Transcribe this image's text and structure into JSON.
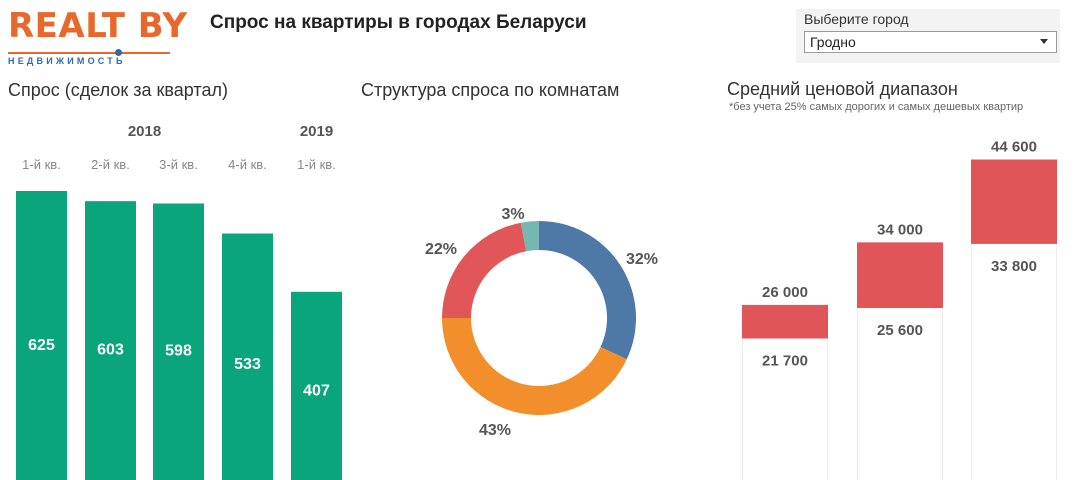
{
  "logo": {
    "text": "REALT BY",
    "subtitle": "НЕДВИЖИМОСТЬ"
  },
  "header": {
    "title": "Спрос на квартиры в городах Беларуси"
  },
  "city_selector": {
    "label": "Выберите город",
    "value": "Гродно"
  },
  "sections": {
    "demand_title": "Спрос (сделок за квартал)",
    "structure_title": "Структура спроса по комнатам",
    "price_title": "Средний ценовой диапазон",
    "price_note": "*без учета 25% самых дорогих и самых дешевых квартир"
  },
  "colors": {
    "bar": "#0aa57a",
    "range": "#e05558",
    "blue": "#4e79a7",
    "orange": "#f28e2b",
    "red": "#e15759",
    "teal": "#76b7b2"
  },
  "chart_data": [
    {
      "type": "bar",
      "title": "Спрос (сделок за квартал)",
      "groups": [
        {
          "label": "2018",
          "span": 4
        },
        {
          "label": "2019",
          "span": 1
        }
      ],
      "categories": [
        "1-й кв.",
        "2-й кв.",
        "3-й кв.",
        "4-й кв.",
        "1-й кв."
      ],
      "values": [
        625,
        603,
        598,
        533,
        407
      ],
      "value_labels": [
        "625",
        "603",
        "598",
        "533",
        "407"
      ],
      "ylim": [
        0,
        625
      ],
      "grid": false
    },
    {
      "type": "pie",
      "title": "Структура спроса по комнатам",
      "slices": [
        {
          "value": 32,
          "label": "32%",
          "color": "#4e79a7"
        },
        {
          "value": 43,
          "label": "43%",
          "color": "#f28e2b"
        },
        {
          "value": 22,
          "label": "22%",
          "color": "#e15759"
        },
        {
          "value": 3,
          "label": "3%",
          "color": "#76b7b2"
        }
      ]
    },
    {
      "type": "bar",
      "title": "Средний ценовой диапазон",
      "subtitle": "*без учета 25% самых дорогих и самых дешевых квартир",
      "ranges": [
        {
          "low": 21700,
          "high": 26000,
          "low_label": "21 700",
          "high_label": "26 000"
        },
        {
          "low": 25600,
          "high": 34000,
          "low_label": "25 600",
          "high_label": "34 000"
        },
        {
          "low": 33800,
          "high": 44600,
          "low_label": "33 800",
          "high_label": "44 600"
        }
      ],
      "grid": false
    }
  ]
}
